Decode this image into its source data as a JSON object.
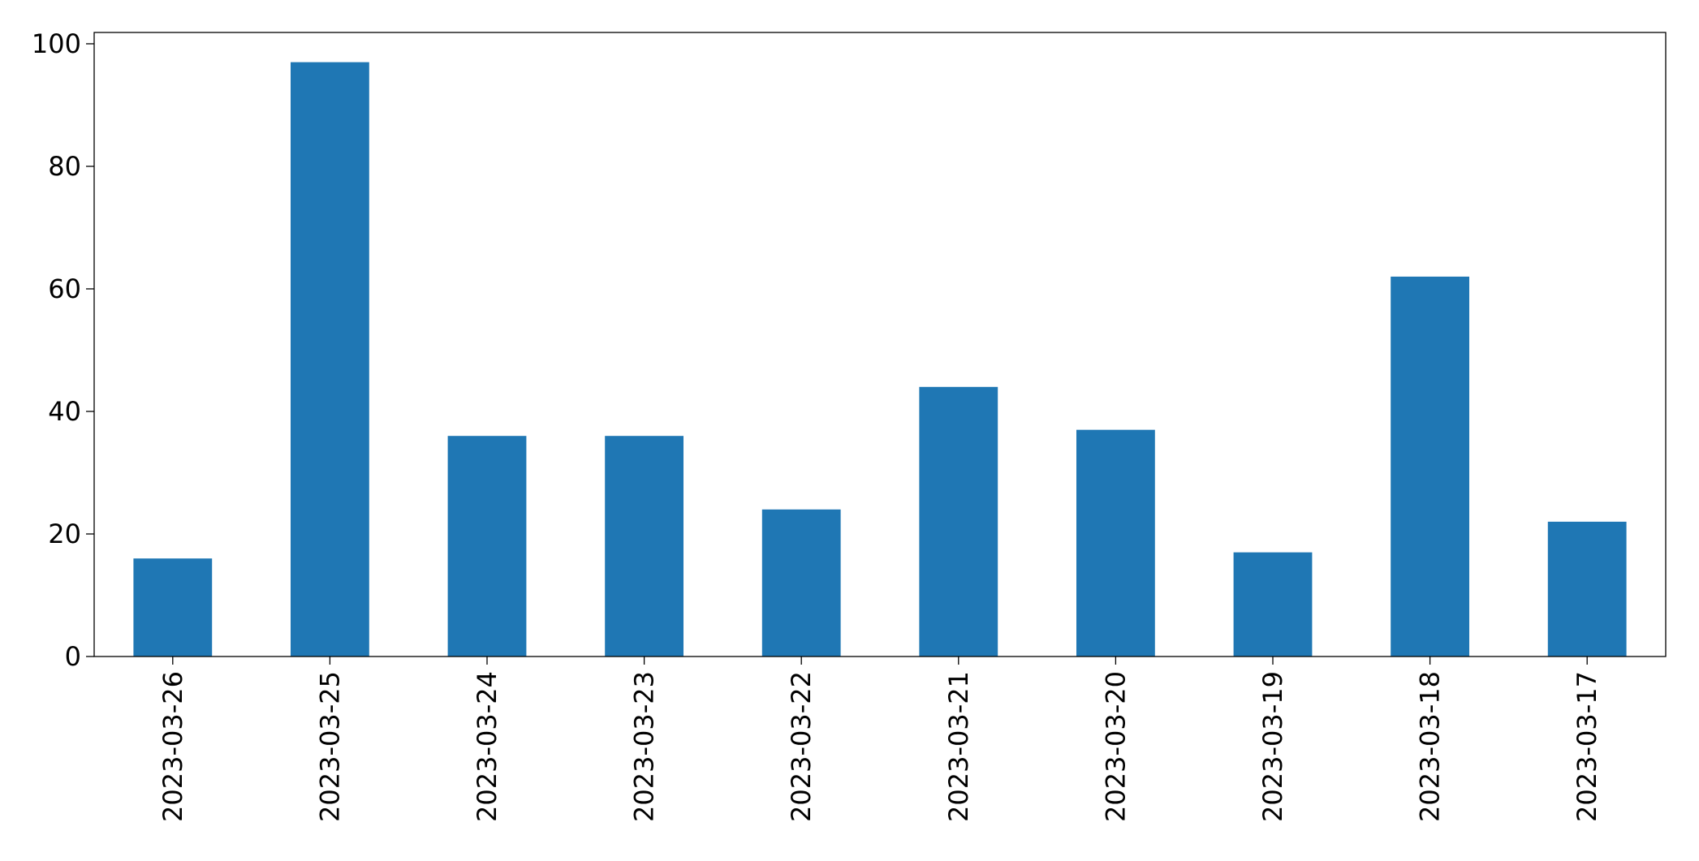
{
  "chart_data": {
    "type": "bar",
    "categories": [
      "2023-03-26",
      "2023-03-25",
      "2023-03-24",
      "2023-03-23",
      "2023-03-22",
      "2023-03-21",
      "2023-03-20",
      "2023-03-19",
      "2023-03-18",
      "2023-03-17"
    ],
    "values": [
      16,
      97,
      36,
      36,
      24,
      44,
      37,
      17,
      62,
      22
    ],
    "color": "#1f77b4",
    "ylim": [
      0,
      101.85
    ],
    "yticks": [
      0,
      20,
      40,
      60,
      80,
      100
    ],
    "grid": false
  }
}
